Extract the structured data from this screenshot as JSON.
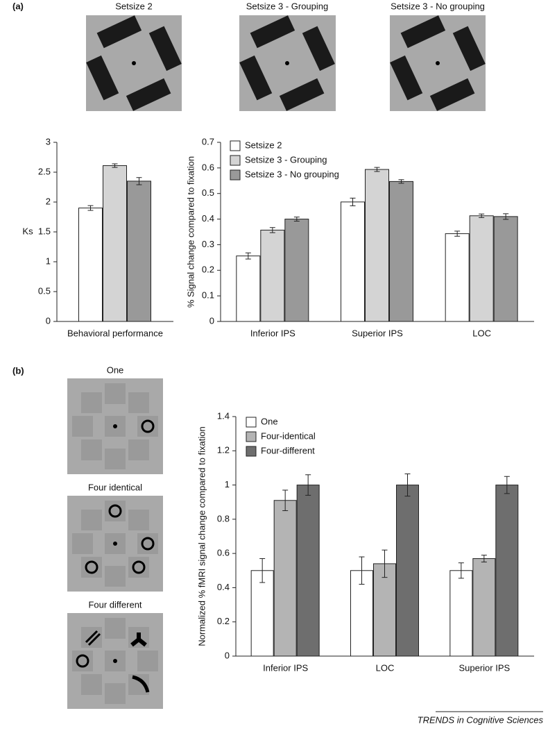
{
  "panel_labels": [
    "(a)",
    "(b)"
  ],
  "stimuli_a": [
    "Setsize 2",
    "Setsize 3 - Grouping",
    "Setsize 3 - No grouping"
  ],
  "stimuli_b": [
    "One",
    "Four identical",
    "Four different"
  ],
  "footer": "TRENDS in Cognitive Sciences",
  "chart_data": [
    {
      "type": "bar",
      "y_label": "Ks",
      "categories": [
        "Behavioral performance"
      ],
      "series": [
        {
          "color": "#ffffff",
          "values": [
            1.9
          ],
          "errors": [
            0.04
          ]
        },
        {
          "color": "#d4d4d4",
          "values": [
            2.61
          ],
          "errors": [
            0.03
          ]
        },
        {
          "color": "#999999",
          "values": [
            2.35
          ],
          "errors": [
            0.06
          ]
        }
      ],
      "ylim": [
        0,
        3
      ],
      "yticks": [
        0,
        0.5,
        1,
        1.5,
        2,
        2.5,
        3
      ]
    },
    {
      "type": "bar",
      "y_label": "% Signal change compared to fixation",
      "categories": [
        "Inferior IPS",
        "Superior IPS",
        "LOC"
      ],
      "series": [
        {
          "name": "Setsize 2",
          "color": "#ffffff",
          "values": [
            0.256,
            0.467,
            0.343
          ],
          "errors": [
            0.012,
            0.015,
            0.01
          ]
        },
        {
          "name": "Setsize 3 - Grouping",
          "color": "#d4d4d4",
          "values": [
            0.357,
            0.594,
            0.413
          ],
          "errors": [
            0.01,
            0.008,
            0.007
          ]
        },
        {
          "name": "Setsize 3 - No grouping",
          "color": "#999999",
          "values": [
            0.4,
            0.547,
            0.41
          ],
          "errors": [
            0.008,
            0.007,
            0.011
          ]
        }
      ],
      "ylim": [
        0,
        0.7
      ],
      "yticks": [
        0,
        0.1,
        0.2,
        0.3,
        0.4,
        0.5,
        0.6,
        0.7
      ],
      "legend": "top-left"
    },
    {
      "type": "bar",
      "y_label": "Normalized % fMRI signal change compared to fixation",
      "categories": [
        "Inferior IPS",
        "LOC",
        "Superior IPS"
      ],
      "series": [
        {
          "name": "One",
          "color": "#ffffff",
          "values": [
            0.5,
            0.5,
            0.5
          ],
          "errors": [
            0.07,
            0.08,
            0.045
          ]
        },
        {
          "name": "Four-identical",
          "color": "#b4b4b4",
          "values": [
            0.91,
            0.54,
            0.57
          ],
          "errors": [
            0.06,
            0.08,
            0.02
          ]
        },
        {
          "name": "Four-different",
          "color": "#6e6e6e",
          "values": [
            1,
            1,
            1
          ],
          "errors": [
            0.06,
            0.065,
            0.05
          ]
        }
      ],
      "ylim": [
        0,
        1.4
      ],
      "yticks": [
        0,
        0.2,
        0.4,
        0.6,
        0.8,
        1,
        1.2,
        1.4
      ],
      "legend": "top-left"
    }
  ]
}
